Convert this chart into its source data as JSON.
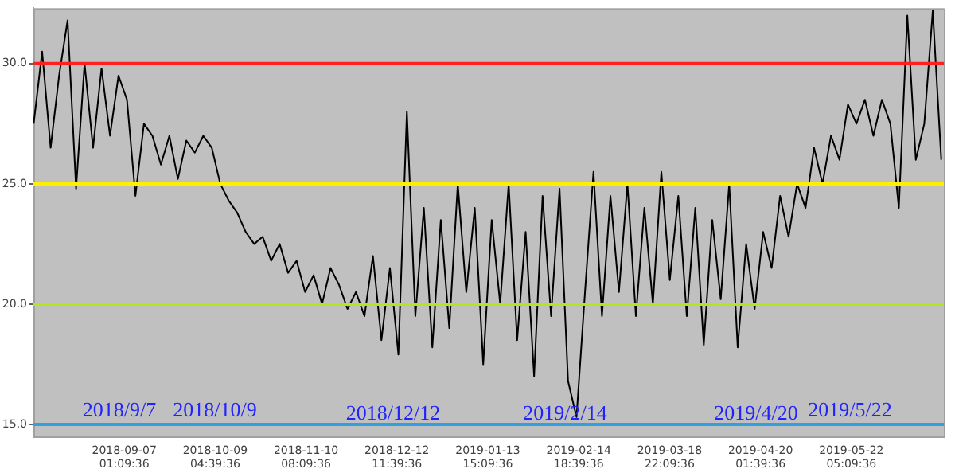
{
  "chart_data": {
    "type": "line",
    "color": "#000000",
    "marker": "none",
    "line_style": "solid",
    "grid": false,
    "legend": false,
    "x": [
      "2018-08-06",
      "2018-08-09",
      "2018-08-12",
      "2018-08-15",
      "2018-08-18",
      "2018-08-21",
      "2018-08-24",
      "2018-08-27",
      "2018-08-30",
      "2018-09-02",
      "2018-09-05",
      "2018-09-08",
      "2018-09-11",
      "2018-09-14",
      "2018-09-17",
      "2018-09-20",
      "2018-09-23",
      "2018-09-26",
      "2018-09-29",
      "2018-10-02",
      "2018-10-05",
      "2018-10-08",
      "2018-10-11",
      "2018-10-14",
      "2018-10-17",
      "2018-10-20",
      "2018-10-23",
      "2018-10-26",
      "2018-10-29",
      "2018-11-01",
      "2018-11-04",
      "2018-11-07",
      "2018-11-10",
      "2018-11-13",
      "2018-11-16",
      "2018-11-19",
      "2018-11-22",
      "2018-11-25",
      "2018-11-28",
      "2018-12-01",
      "2018-12-04",
      "2018-12-07",
      "2018-12-10",
      "2018-12-13",
      "2018-12-16",
      "2018-12-19",
      "2018-12-22",
      "2018-12-25",
      "2018-12-28",
      "2018-12-31",
      "2019-01-03",
      "2019-01-06",
      "2019-01-09",
      "2019-01-12",
      "2019-01-15",
      "2019-01-18",
      "2019-01-21",
      "2019-01-24",
      "2019-01-27",
      "2019-01-30",
      "2019-02-02",
      "2019-02-05",
      "2019-02-08",
      "2019-02-11",
      "2019-02-14",
      "2019-02-17",
      "2019-02-20",
      "2019-02-23",
      "2019-02-26",
      "2019-03-01",
      "2019-03-04",
      "2019-03-07",
      "2019-03-10",
      "2019-03-13",
      "2019-03-16",
      "2019-03-19",
      "2019-03-22",
      "2019-03-25",
      "2019-03-28",
      "2019-03-31",
      "2019-04-03",
      "2019-04-06",
      "2019-04-09",
      "2019-04-12",
      "2019-04-15",
      "2019-04-18",
      "2019-04-21",
      "2019-04-24",
      "2019-04-27",
      "2019-04-30",
      "2019-05-03",
      "2019-05-06",
      "2019-05-09",
      "2019-05-12",
      "2019-05-15",
      "2019-05-18",
      "2019-05-21",
      "2019-05-24",
      "2019-05-27",
      "2019-05-30",
      "2019-06-02",
      "2019-06-05",
      "2019-06-08",
      "2019-06-11",
      "2019-06-14",
      "2019-06-17",
      "2019-06-20",
      "2019-06-23"
    ],
    "values": [
      27.5,
      30.5,
      26.5,
      29.5,
      31.8,
      24.8,
      30,
      26.5,
      29.8,
      27,
      29.5,
      28.5,
      24.5,
      27.5,
      27,
      25.8,
      27,
      25.2,
      26.8,
      26.3,
      27,
      26.5,
      25,
      24.3,
      23.8,
      23,
      22.5,
      22.8,
      21.8,
      22.5,
      21.3,
      21.8,
      20.5,
      21.2,
      20,
      21.5,
      20.8,
      19.8,
      20.5,
      19.5,
      22,
      18.5,
      21.5,
      17.9,
      28,
      19.5,
      24,
      18.2,
      23.5,
      19,
      25,
      20.5,
      24,
      17.5,
      23.5,
      20,
      25,
      18.5,
      23,
      17,
      24.5,
      19.5,
      24.8,
      16.8,
      15.3,
      20.5,
      25.5,
      19.5,
      24.5,
      20.5,
      25,
      19.5,
      24,
      20,
      25.5,
      21,
      24.5,
      19.5,
      24,
      18.3,
      23.5,
      20.2,
      25,
      18.2,
      22.5,
      19.8,
      23,
      21.5,
      24.5,
      22.8,
      25,
      24,
      26.5,
      25,
      27,
      26,
      28.3,
      27.5,
      28.5,
      27,
      28.5,
      27.5,
      24,
      32,
      26,
      27.5,
      32.2,
      26
    ],
    "xlim": [
      "2018-08-05T22:00",
      "2019-06-23T22:00"
    ],
    "xticks": [
      {
        "value": "2018-09-07T01:09:36",
        "label": "2018-09-07\n01:09:36"
      },
      {
        "value": "2018-10-09T04:39:36",
        "label": "2018-10-09\n04:39:36"
      },
      {
        "value": "2018-11-10T08:09:36",
        "label": "2018-11-10\n08:09:36"
      },
      {
        "value": "2018-12-12T11:39:36",
        "label": "2018-12-12\n11:39:36"
      },
      {
        "value": "2019-01-13T15:09:36",
        "label": "2019-01-13\n15:09:36"
      },
      {
        "value": "2019-02-14T18:39:36",
        "label": "2019-02-14\n18:39:36"
      },
      {
        "value": "2019-03-18T22:09:36",
        "label": "2019-03-18\n22:09:36"
      },
      {
        "value": "2019-04-20T01:39:36",
        "label": "2019-04-20\n01:39:36"
      },
      {
        "value": "2019-05-22T05:09:36",
        "label": "2019-05-22\n05:09:36"
      }
    ],
    "ylim": [
      14.5,
      32.3
    ],
    "yticks": [
      {
        "value": 15,
        "label": "15.0"
      },
      {
        "value": 20,
        "label": "20.0"
      },
      {
        "value": 25,
        "label": "25.0"
      },
      {
        "value": 30,
        "label": "30.0"
      }
    ],
    "ref_lines": [
      {
        "axis": "y",
        "value": 30,
        "color": "#ff2020"
      },
      {
        "axis": "y",
        "value": 25,
        "color": "#ffee00"
      },
      {
        "axis": "y",
        "value": 20,
        "color": "#b4e61e"
      },
      {
        "axis": "y",
        "value": 15,
        "color": "#30a0e0"
      }
    ],
    "annotations": [
      "2018/9/7",
      "2018/10/9",
      "2018/12/12",
      "2019/2/14",
      "2019/4/20",
      "2019/5/22"
    ]
  }
}
